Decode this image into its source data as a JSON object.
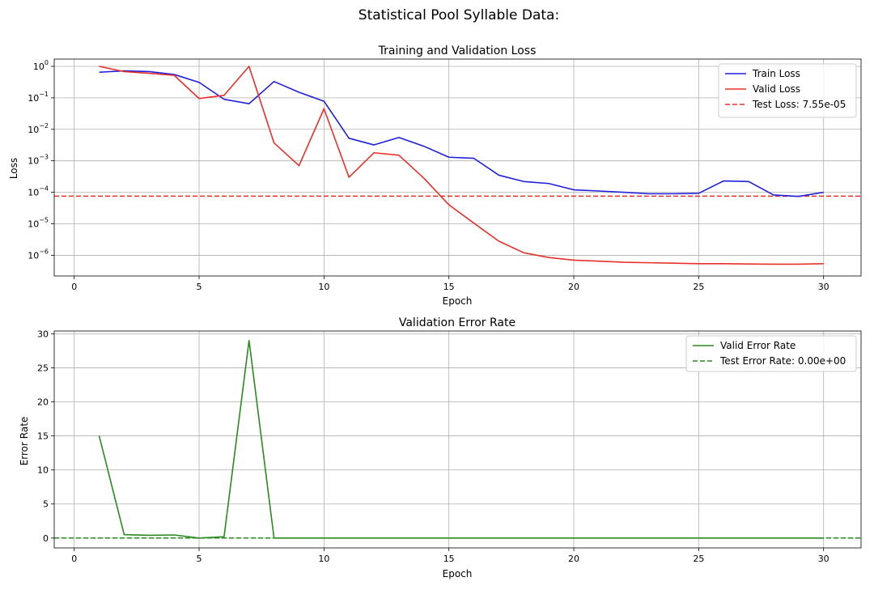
{
  "figure": {
    "suptitle": "Statistical Pool Syllable Data:"
  },
  "chart_data": [
    {
      "type": "line",
      "title": "Training and Validation Loss",
      "xlabel": "Epoch",
      "ylabel": "Loss",
      "xlim": [
        -0.8,
        31.5
      ],
      "ylim": [
        2.2e-07,
        1.7
      ],
      "yscale": "log",
      "grid": true,
      "legend_position": "upper right",
      "x_ticks": [
        0,
        5,
        10,
        15,
        20,
        25,
        30
      ],
      "x_tick_labels": [
        "0",
        "5",
        "10",
        "15",
        "20",
        "25",
        "30"
      ],
      "y_ticks": [
        {
          "value": 1,
          "base": "10",
          "exp": "0"
        },
        {
          "value": 0.1,
          "base": "10",
          "exp": "−1"
        },
        {
          "value": 0.01,
          "base": "10",
          "exp": "−2"
        },
        {
          "value": 0.001,
          "base": "10",
          "exp": "−3"
        },
        {
          "value": 0.0001,
          "base": "10",
          "exp": "−4"
        },
        {
          "value": 1e-05,
          "base": "10",
          "exp": "−5"
        },
        {
          "value": 1e-06,
          "base": "10",
          "exp": "−6"
        }
      ],
      "series": [
        {
          "name": "Train Loss",
          "color": "#1f1fdc",
          "style": "solid",
          "x": [
            1,
            2,
            3,
            4,
            5,
            6,
            7,
            8,
            9,
            10,
            11,
            12,
            13,
            14,
            15,
            16,
            17,
            18,
            19,
            20,
            21,
            22,
            23,
            24,
            25,
            26,
            27,
            28,
            29,
            30
          ],
          "y": [
            0.65,
            0.72,
            0.68,
            0.55,
            0.31,
            0.09,
            0.065,
            0.33,
            0.15,
            0.078,
            0.0052,
            0.0032,
            0.0055,
            0.0029,
            0.0013,
            0.0012,
            0.00035,
            0.00022,
            0.00019,
            0.00012,
            0.00011,
            0.0001,
            9e-05,
            9e-05,
            9.3e-05,
            0.00023,
            0.00022,
            8.2e-05,
            7.4e-05,
            0.0001
          ]
        },
        {
          "name": "Valid Loss",
          "color": "#e8302a",
          "style": "solid",
          "x": [
            1,
            2,
            3,
            4,
            5,
            6,
            7,
            8,
            9,
            10,
            11,
            12,
            13,
            14,
            15,
            16,
            17,
            18,
            19,
            20,
            21,
            22,
            23,
            24,
            25,
            26,
            27,
            28,
            29,
            30
          ],
          "y": [
            1.0,
            0.68,
            0.6,
            0.52,
            0.095,
            0.12,
            1.0,
            0.0037,
            0.0007,
            0.045,
            0.0003,
            0.0018,
            0.0015,
            0.00028,
            4e-05,
            1.05e-05,
            2.8e-06,
            1.2e-06,
            8.5e-07,
            7e-07,
            6.5e-07,
            6e-07,
            5.8e-07,
            5.6e-07,
            5.4e-07,
            5.4e-07,
            5.3e-07,
            5.2e-07,
            5.2e-07,
            5.4e-07
          ]
        }
      ],
      "hlines": [
        {
          "name": "Test Loss: 7.55e-05",
          "value": 7.55e-05,
          "color": "#e8302a",
          "style": "dashed"
        }
      ]
    },
    {
      "type": "line",
      "title": "Validation Error Rate",
      "xlabel": "Epoch",
      "ylabel": "Error Rate",
      "xlim": [
        -0.8,
        31.5
      ],
      "ylim": [
        -1.45,
        30.4
      ],
      "grid": true,
      "legend_position": "upper right",
      "x_ticks": [
        0,
        5,
        10,
        15,
        20,
        25,
        30
      ],
      "x_tick_labels": [
        "0",
        "5",
        "10",
        "15",
        "20",
        "25",
        "30"
      ],
      "y_ticks": [
        0,
        5,
        10,
        15,
        20,
        25,
        30
      ],
      "y_tick_labels": [
        "0",
        "5",
        "10",
        "15",
        "20",
        "25",
        "30"
      ],
      "series": [
        {
          "name": "Valid Error Rate",
          "color": "#2a8a1f",
          "style": "solid",
          "x": [
            1,
            2,
            3,
            4,
            5,
            6,
            7,
            8,
            9,
            10,
            11,
            12,
            13,
            14,
            15,
            16,
            17,
            18,
            19,
            20,
            21,
            22,
            23,
            24,
            25,
            26,
            27,
            28,
            29,
            30
          ],
          "y": [
            15,
            0.5,
            0.4,
            0.45,
            0,
            0.2,
            29,
            0,
            0,
            0,
            0,
            0,
            0,
            0,
            0,
            0,
            0,
            0,
            0,
            0,
            0,
            0,
            0,
            0,
            0,
            0,
            0,
            0,
            0,
            0
          ]
        }
      ],
      "hlines": [
        {
          "name": "Test Error Rate: 0.00e+00",
          "value": 0,
          "color": "#2a8a1f",
          "style": "dashed"
        }
      ]
    }
  ]
}
